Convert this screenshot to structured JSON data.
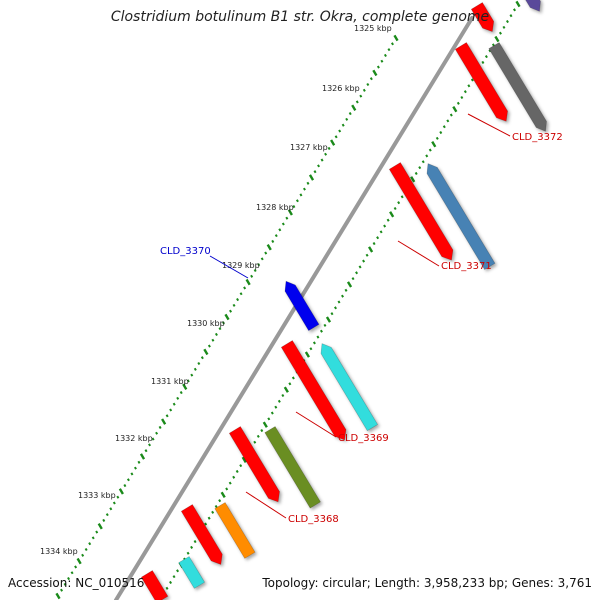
{
  "title": "Clostridium botulinum B1 str. Okra, complete genome",
  "footer": {
    "accession": "Accession: NC_010516",
    "summary": "Topology: circular; Length: 3,958,233 bp; Genes: 3,761"
  },
  "ruler": {
    "labels": [
      "1325 kbp",
      "1326 kbp",
      "1327 kbp",
      "1328 kbp",
      "1329 kbp",
      "1330 kbp",
      "1331 kbp",
      "1332 kbp",
      "1333 kbp",
      "1334 kbp"
    ]
  },
  "gene_labels": [
    {
      "text": "CLD_3372",
      "color": "#cc0000"
    },
    {
      "text": "CLD_3371",
      "color": "#cc0000"
    },
    {
      "text": "CLD_3370",
      "color": "#0000cc"
    },
    {
      "text": "CLD_3369",
      "color": "#cc0000"
    },
    {
      "text": "CLD_3368",
      "color": "#cc0000"
    }
  ],
  "colors": {
    "cds": "#ff0000",
    "backbone": "#888888",
    "tick": "#1a8a1a",
    "cyan": "#33dddd",
    "steelblue": "#4682b4",
    "gray": "#666666",
    "olive": "#6b8e23",
    "orange": "#ff8c00",
    "blue": "#0000ee",
    "slateblue": "#5a4a9a"
  }
}
